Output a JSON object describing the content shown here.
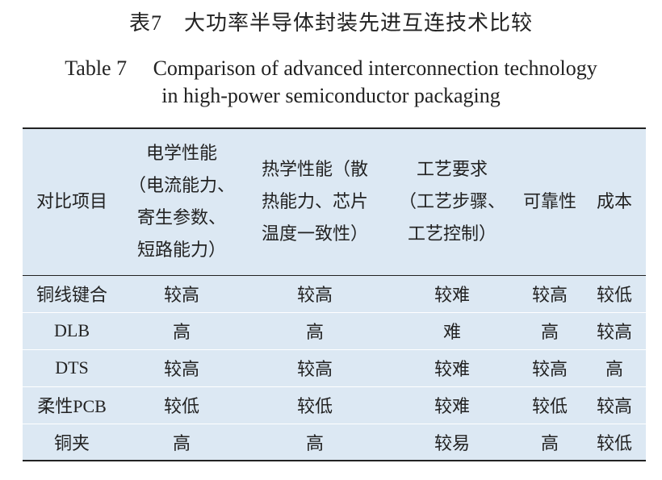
{
  "header": {
    "title_cn": "表7　大功率半导体封装先进互连技术比较",
    "title_en": [
      "Table 7　 Comparison of advanced interconnection technology",
      "in high-power semiconductor packaging"
    ]
  },
  "table": {
    "columns": [
      [
        "对比项目"
      ],
      [
        "电学性能",
        "（电流能力、",
        "寄生参数、",
        "短路能力）"
      ],
      [
        "热学性能（散",
        "热能力、芯片",
        "温度一致性）"
      ],
      [
        "工艺要求",
        "（工艺步骤、",
        "工艺控制）"
      ],
      [
        "可靠性"
      ],
      [
        "成本"
      ]
    ],
    "rows": [
      [
        "铜线键合",
        "较高",
        "较高",
        "较难",
        "较高",
        "较低"
      ],
      [
        "DLB",
        "高",
        "高",
        "难",
        "高",
        "较高"
      ],
      [
        "DTS",
        "较高",
        "较高",
        "较难",
        "较高",
        "高"
      ],
      [
        "柔性PCB",
        "较低",
        "较低",
        "较难",
        "较低",
        "较高"
      ],
      [
        "铜夹",
        "高",
        "高",
        "较易",
        "高",
        "较低"
      ]
    ]
  }
}
